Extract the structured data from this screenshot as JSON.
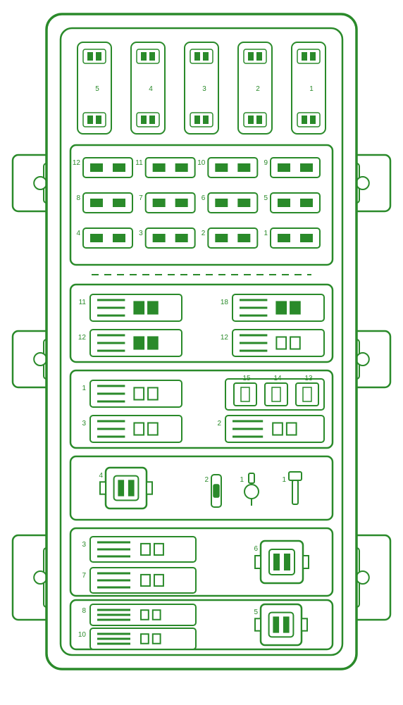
{
  "diagram": {
    "type": "fuse-box-schematic",
    "stroke_color": "#2a8a2a",
    "fill_color": "#ffffff",
    "background_color": "#ffffff",
    "line_width": 2,
    "label_fontsize": 10,
    "label_color": "#2a8a2a",
    "top_slots": {
      "count": 5,
      "labels": [
        "5",
        "4",
        "3",
        "2",
        "1"
      ]
    },
    "mini_fuse_rows": [
      {
        "count": 4,
        "labels": [
          "12",
          "11",
          "10",
          "9"
        ]
      },
      {
        "count": 4,
        "labels": [
          "8",
          "7",
          "6",
          "5"
        ]
      },
      {
        "count": 4,
        "labels": [
          "4",
          "3",
          "2",
          "1"
        ]
      }
    ],
    "section_a": {
      "left": [
        {
          "label": "11",
          "filled": true
        },
        {
          "label": "12",
          "filled": true
        }
      ],
      "right": [
        {
          "label": "18",
          "filled": true
        },
        {
          "label": "12",
          "filled": false
        }
      ]
    },
    "section_b": {
      "left": [
        {
          "label": "1",
          "filled": false
        },
        {
          "label": "3",
          "filled": false
        }
      ],
      "right_cluster": {
        "count": 3,
        "labels": [
          "15",
          "14",
          "13"
        ]
      },
      "right_bottom": {
        "label": "2",
        "filled": false
      }
    },
    "section_c": {
      "relay_label": "4",
      "mid_labels": [
        "2",
        "1",
        "1"
      ]
    },
    "section_d": {
      "left": [
        {
          "label": "3"
        },
        {
          "label": "7"
        }
      ],
      "right_relay_label": "6"
    },
    "section_e": {
      "left": [
        {
          "label": "8"
        },
        {
          "label": "10"
        }
      ],
      "right_relay_label": "5"
    }
  }
}
